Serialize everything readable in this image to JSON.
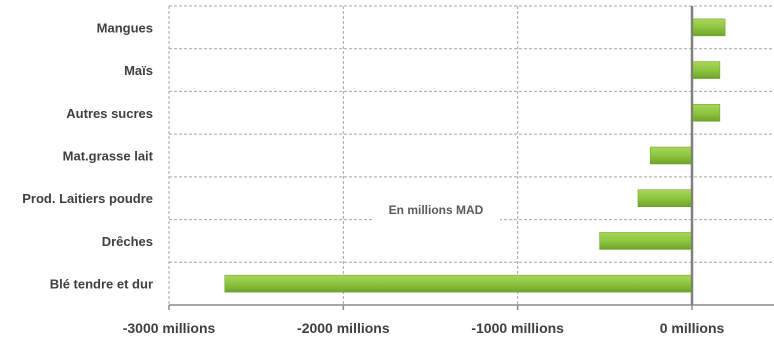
{
  "chart_data": {
    "type": "bar",
    "orientation": "horizontal",
    "categories": [
      "Mangues",
      "Maïs",
      "Autres sucres",
      "Mat.grasse lait",
      "Prod. Laitiers poudre",
      "Drêches",
      "Blé tendre et dur"
    ],
    "values": [
      190,
      160,
      160,
      -240,
      -310,
      -530,
      -2680
    ],
    "xlim": [
      -3000,
      480
    ],
    "x_ticks": [
      -3000,
      -2000,
      -1000,
      0
    ],
    "x_tick_labels": [
      "-3000 millions",
      "-2000 millions",
      "-1000 millions",
      "0 millions"
    ],
    "annotation": "En millions MAD",
    "grid": true,
    "colors": {
      "bar": "#8dc63f",
      "bar_dark": "#6a9a2a",
      "grid": "#a6a6a6",
      "zero_line": "#808080",
      "text": "#404040"
    }
  }
}
